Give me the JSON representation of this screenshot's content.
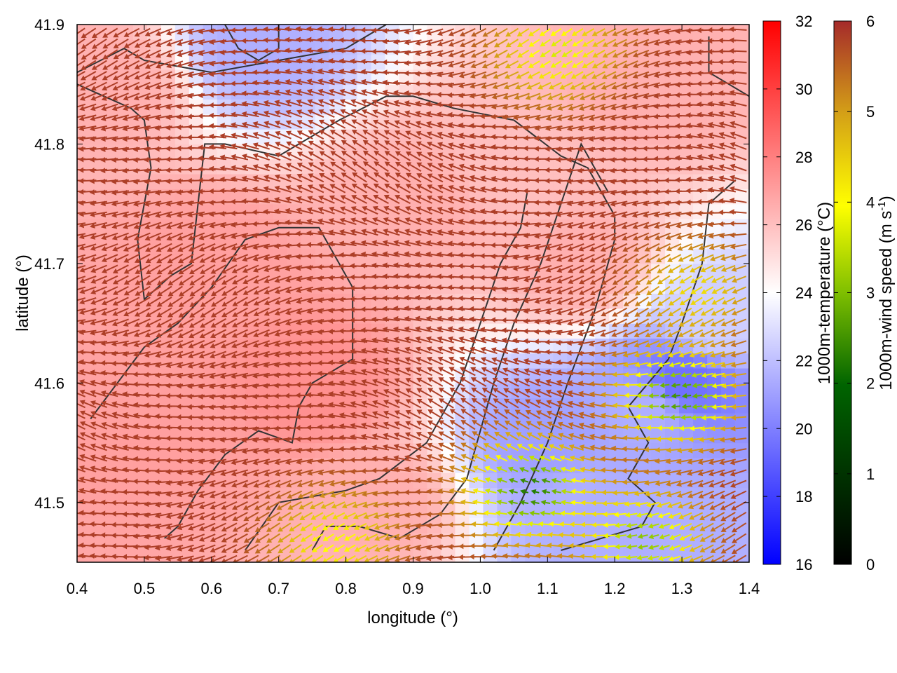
{
  "chart_data": {
    "type": "heatmap",
    "title": "",
    "xlabel": "longitude (°)",
    "ylabel": "latitude (°)",
    "xlim": [
      0.4,
      1.4
    ],
    "ylim": [
      41.45,
      41.9
    ],
    "x_ticks": [
      {
        "value": 0.4,
        "label": "0.4"
      },
      {
        "value": 0.5,
        "label": "0.5"
      },
      {
        "value": 0.6,
        "label": "0.6"
      },
      {
        "value": 0.7,
        "label": "0.7"
      },
      {
        "value": 0.8,
        "label": "0.8"
      },
      {
        "value": 0.9,
        "label": "0.9"
      },
      {
        "value": 1.0,
        "label": "1.0"
      },
      {
        "value": 1.1,
        "label": "1.1"
      },
      {
        "value": 1.2,
        "label": "1.2"
      },
      {
        "value": 1.3,
        "label": "1.3"
      },
      {
        "value": 1.4,
        "label": "1.4"
      }
    ],
    "y_ticks": [
      {
        "value": 41.5,
        "label": "41.5"
      },
      {
        "value": 41.6,
        "label": "41.6"
      },
      {
        "value": 41.7,
        "label": "41.7"
      },
      {
        "value": 41.8,
        "label": "41.8"
      },
      {
        "value": 41.9,
        "label": "41.9"
      }
    ],
    "temperature_colorbar": {
      "label": "1000m-temperature (°C)",
      "range": [
        16,
        32
      ],
      "ticks": [
        "16",
        "18",
        "20",
        "22",
        "24",
        "26",
        "28",
        "30",
        "32"
      ],
      "colors": [
        "#0000ff",
        "#ffffff",
        "#ff0000"
      ]
    },
    "wind_colorbar": {
      "label_prefix": "1000m-wind speed (m s",
      "label_exp": "-1",
      "label_suffix": ")",
      "range": [
        0,
        6
      ],
      "ticks": [
        "0",
        "1",
        "2",
        "3",
        "4",
        "5",
        "6"
      ],
      "colors": [
        "#000000",
        "#006400",
        "#7fbf00",
        "#ffff00",
        "#d4a017",
        "#a52a2a"
      ]
    },
    "temperature_field_samples": [
      {
        "lon": 0.45,
        "lat": 41.85,
        "t": 26.5
      },
      {
        "lon": 0.67,
        "lat": 41.88,
        "t": 21.5
      },
      {
        "lon": 0.6,
        "lat": 41.7,
        "t": 27.0
      },
      {
        "lon": 0.75,
        "lat": 41.6,
        "t": 27.5
      },
      {
        "lon": 0.9,
        "lat": 41.75,
        "t": 26.5
      },
      {
        "lon": 1.05,
        "lat": 41.78,
        "t": 26.0
      },
      {
        "lon": 1.15,
        "lat": 41.7,
        "t": 26.5
      },
      {
        "lon": 1.25,
        "lat": 41.85,
        "t": 26.5
      },
      {
        "lon": 1.3,
        "lat": 41.6,
        "t": 19.5
      },
      {
        "lon": 1.1,
        "lat": 41.55,
        "t": 21.0
      },
      {
        "lon": 1.15,
        "lat": 41.5,
        "t": 21.5
      },
      {
        "lon": 1.35,
        "lat": 41.65,
        "t": 22.5
      },
      {
        "lon": 0.55,
        "lat": 41.55,
        "t": 27.0
      },
      {
        "lon": 0.85,
        "lat": 41.5,
        "t": 26.5
      },
      {
        "lon": 1.3,
        "lat": 41.47,
        "t": 21.5
      },
      {
        "lon": 1.25,
        "lat": 41.58,
        "t": 21.5
      }
    ],
    "wind_speed_regions": [
      {
        "description": "calm core",
        "lon": 1.3,
        "lat": 41.59,
        "speed": 1.8
      },
      {
        "description": "calm core",
        "lon": 1.08,
        "lat": 41.51,
        "speed": 1.5
      },
      {
        "description": "weak",
        "lon": 1.12,
        "lat": 41.88,
        "speed": 3.2
      },
      {
        "description": "weak",
        "lon": 0.79,
        "lat": 41.47,
        "speed": 3.5
      },
      {
        "description": "weak",
        "lon": 1.25,
        "lat": 41.47,
        "speed": 2.5
      },
      {
        "description": "moderate",
        "lon": 1.33,
        "lat": 41.68,
        "speed": 4.0
      }
    ],
    "contours": [
      [
        [
          0.4,
          41.86
        ],
        [
          0.47,
          41.88
        ],
        [
          0.5,
          41.87
        ],
        [
          0.6,
          41.86
        ],
        [
          0.7,
          41.87
        ],
        [
          0.8,
          41.88
        ],
        [
          0.86,
          41.9
        ]
      ],
      [
        [
          0.4,
          41.85
        ],
        [
          0.44,
          41.84
        ],
        [
          0.48,
          41.83
        ],
        [
          0.5,
          41.82
        ],
        [
          0.51,
          41.78
        ],
        [
          0.49,
          41.72
        ],
        [
          0.5,
          41.67
        ],
        [
          0.54,
          41.69
        ],
        [
          0.57,
          41.7
        ],
        [
          0.58,
          41.75
        ],
        [
          0.59,
          41.8
        ],
        [
          0.62,
          41.8
        ],
        [
          0.7,
          41.79
        ],
        [
          0.79,
          41.82
        ],
        [
          0.86,
          41.84
        ],
        [
          0.9,
          41.84
        ],
        [
          0.96,
          41.83
        ],
        [
          1.05,
          41.82
        ],
        [
          1.12,
          41.79
        ],
        [
          1.16,
          41.78
        ],
        [
          1.2,
          41.74
        ],
        [
          1.2,
          41.72
        ],
        [
          1.17,
          41.66
        ],
        [
          1.13,
          41.6
        ],
        [
          1.1,
          41.55
        ],
        [
          1.06,
          41.5
        ],
        [
          1.02,
          41.46
        ]
      ],
      [
        [
          0.42,
          41.57
        ],
        [
          0.46,
          41.6
        ],
        [
          0.5,
          41.63
        ],
        [
          0.55,
          41.65
        ],
        [
          0.6,
          41.68
        ],
        [
          0.65,
          41.72
        ],
        [
          0.7,
          41.73
        ],
        [
          0.76,
          41.73
        ],
        [
          0.81,
          41.68
        ],
        [
          0.81,
          41.62
        ],
        [
          0.75,
          41.6
        ],
        [
          0.73,
          41.58
        ],
        [
          0.72,
          41.55
        ],
        [
          0.67,
          41.56
        ],
        [
          0.62,
          41.54
        ],
        [
          0.58,
          41.51
        ],
        [
          0.55,
          41.48
        ],
        [
          0.53,
          41.47
        ]
      ],
      [
        [
          0.65,
          41.46
        ],
        [
          0.7,
          41.5
        ],
        [
          0.8,
          41.51
        ],
        [
          0.85,
          41.52
        ],
        [
          0.92,
          41.55
        ],
        [
          0.97,
          41.6
        ],
        [
          1.0,
          41.65
        ],
        [
          1.03,
          41.7
        ],
        [
          1.06,
          41.73
        ],
        [
          1.07,
          41.76
        ]
      ],
      [
        [
          0.75,
          41.46
        ],
        [
          0.77,
          41.48
        ],
        [
          0.82,
          41.48
        ],
        [
          0.88,
          41.47
        ],
        [
          0.94,
          41.49
        ],
        [
          0.98,
          41.52
        ],
        [
          1.0,
          41.56
        ],
        [
          1.02,
          41.6
        ],
        [
          1.05,
          41.65
        ],
        [
          1.09,
          41.7
        ],
        [
          1.12,
          41.75
        ],
        [
          1.15,
          41.8
        ],
        [
          1.19,
          41.76
        ]
      ],
      [
        [
          1.12,
          41.46
        ],
        [
          1.18,
          41.47
        ],
        [
          1.24,
          41.48
        ],
        [
          1.26,
          41.5
        ],
        [
          1.22,
          41.52
        ],
        [
          1.25,
          41.55
        ],
        [
          1.22,
          41.58
        ],
        [
          1.25,
          41.6
        ],
        [
          1.28,
          41.62
        ],
        [
          1.3,
          41.65
        ],
        [
          1.33,
          41.7
        ],
        [
          1.34,
          41.75
        ],
        [
          1.38,
          41.77
        ]
      ],
      [
        [
          0.62,
          41.9
        ],
        [
          0.64,
          41.88
        ],
        [
          0.67,
          41.87
        ],
        [
          0.7,
          41.88
        ],
        [
          0.7,
          41.9
        ]
      ],
      [
        [
          1.34,
          41.89
        ],
        [
          1.34,
          41.86
        ],
        [
          1.37,
          41.85
        ],
        [
          1.4,
          41.84
        ]
      ]
    ]
  }
}
